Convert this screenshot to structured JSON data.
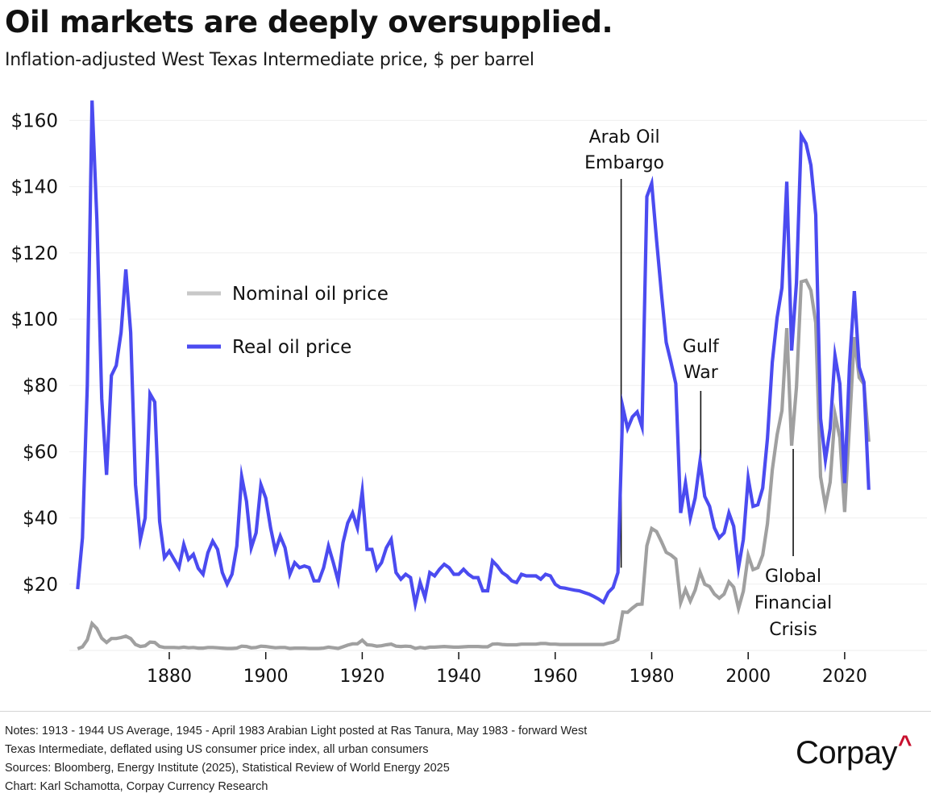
{
  "header": {
    "title": "Oil markets are deeply oversupplied.",
    "subtitle": "Inflation-adjusted West Texas Intermediate price, $ per barrel"
  },
  "footer": {
    "notes": [
      "Notes: 1913 - 1944 US Average, 1945 - April 1983 Arabian Light posted at Ras Tanura, May 1983 - forward West",
      "Texas Intermediate, deflated using US consumer price index, all urban consumers",
      "Sources: Bloomberg, Energy Institute (2025), Statistical Review of World Energy 2025",
      "Chart: Karl Schamotta, Corpay Currency Research"
    ],
    "logo_text": "Corpay",
    "logo_mark": "^",
    "logo_accent_color": "#c8102e"
  },
  "chart_data": {
    "type": "line",
    "title": "Oil markets are deeply oversupplied.",
    "subtitle": "Inflation-adjusted West Texas Intermediate price, $ per barrel",
    "xlabel": "",
    "ylabel": "",
    "xlim": [
      1861,
      2025
    ],
    "ylim": [
      0,
      165
    ],
    "grid": true,
    "x_ticks": [
      1880,
      1900,
      1920,
      1940,
      1960,
      1980,
      2000,
      2020
    ],
    "y_ticks": [
      20,
      40,
      60,
      80,
      100,
      120,
      140,
      160
    ],
    "y_tick_labels": [
      "$20",
      "$40",
      "$60",
      "$80",
      "$100",
      "$120",
      "$140",
      "$160"
    ],
    "legend": {
      "placement": "upper-left-inside",
      "entries": [
        "Nominal oil price",
        "Real oil price"
      ]
    },
    "x": [
      1861,
      1862,
      1863,
      1864,
      1865,
      1866,
      1867,
      1868,
      1869,
      1870,
      1871,
      1872,
      1873,
      1874,
      1875,
      1876,
      1877,
      1878,
      1879,
      1880,
      1881,
      1882,
      1883,
      1884,
      1885,
      1886,
      1887,
      1888,
      1889,
      1890,
      1891,
      1892,
      1893,
      1894,
      1895,
      1896,
      1897,
      1898,
      1899,
      1900,
      1901,
      1902,
      1903,
      1904,
      1905,
      1906,
      1907,
      1908,
      1909,
      1910,
      1911,
      1912,
      1913,
      1914,
      1915,
      1916,
      1917,
      1918,
      1919,
      1920,
      1921,
      1922,
      1923,
      1924,
      1925,
      1926,
      1927,
      1928,
      1929,
      1930,
      1931,
      1932,
      1933,
      1934,
      1935,
      1936,
      1937,
      1938,
      1939,
      1940,
      1941,
      1942,
      1943,
      1944,
      1945,
      1946,
      1947,
      1948,
      1949,
      1950,
      1951,
      1952,
      1953,
      1954,
      1955,
      1956,
      1957,
      1958,
      1959,
      1960,
      1961,
      1962,
      1963,
      1964,
      1965,
      1966,
      1967,
      1968,
      1969,
      1970,
      1971,
      1972,
      1973,
      1974,
      1975,
      1976,
      1977,
      1978,
      1979,
      1980,
      1981,
      1982,
      1983,
      1984,
      1985,
      1986,
      1987,
      1988,
      1989,
      1990,
      1991,
      1992,
      1993,
      1994,
      1995,
      1996,
      1997,
      1998,
      1999,
      2000,
      2001,
      2002,
      2003,
      2004,
      2005,
      2006,
      2007,
      2008,
      2009,
      2010,
      2011,
      2012,
      2013,
      2014,
      2015,
      2016,
      2017,
      2018,
      2019,
      2020,
      2021,
      2022,
      2023,
      2024,
      2025
    ],
    "series": [
      {
        "name": "Nominal oil price",
        "color": "#a0a0a0",
        "legend_color": "#c8c8c8",
        "values": [
          0.5,
          1.1,
          3.2,
          8.1,
          6.6,
          3.7,
          2.4,
          3.6,
          3.6,
          3.9,
          4.3,
          3.6,
          1.8,
          1.2,
          1.4,
          2.5,
          2.4,
          1.2,
          0.9,
          0.9,
          0.9,
          0.8,
          1.0,
          0.8,
          0.9,
          0.7,
          0.7,
          0.9,
          0.9,
          0.8,
          0.7,
          0.6,
          0.6,
          0.7,
          1.3,
          1.2,
          0.8,
          0.9,
          1.3,
          1.2,
          1.0,
          0.8,
          0.9,
          0.9,
          0.6,
          0.7,
          0.7,
          0.7,
          0.6,
          0.6,
          0.6,
          0.7,
          1.0,
          0.8,
          0.6,
          1.1,
          1.6,
          2.0,
          2.0,
          3.1,
          1.7,
          1.6,
          1.3,
          1.4,
          1.7,
          1.9,
          1.3,
          1.2,
          1.3,
          1.2,
          0.6,
          0.9,
          0.7,
          1.0,
          1.0,
          1.1,
          1.2,
          1.1,
          1.0,
          1.0,
          1.1,
          1.2,
          1.2,
          1.2,
          1.1,
          1.1,
          1.9,
          2.0,
          1.8,
          1.7,
          1.7,
          1.7,
          1.9,
          1.9,
          1.9,
          1.9,
          2.1,
          2.1,
          1.9,
          1.9,
          1.8,
          1.8,
          1.8,
          1.8,
          1.8,
          1.8,
          1.8,
          1.8,
          1.8,
          1.8,
          2.2,
          2.5,
          3.3,
          11.6,
          11.5,
          12.8,
          13.9,
          14.0,
          31.6,
          36.8,
          35.9,
          32.9,
          29.6,
          28.8,
          27.6,
          14.4,
          18.4,
          14.9,
          18.2,
          23.7,
          20.0,
          19.3,
          17.0,
          15.8,
          17.0,
          20.7,
          19.1,
          12.7,
          17.9,
          28.7,
          24.4,
          25.0,
          28.8,
          38.3,
          54.5,
          65.1,
          72.4,
          97.3,
          61.8,
          79.5,
          111.3,
          111.7,
          108.7,
          98.9,
          52.4,
          43.7,
          50.8,
          71.3,
          64.2,
          41.8,
          68.2,
          94.6,
          82.4,
          80.4,
          63.0
        ]
      },
      {
        "name": "Real oil price",
        "color": "#4b4bf0",
        "legend_color": "#4b4bf0",
        "values": [
          18.5,
          34.0,
          80.0,
          166.0,
          130.0,
          76.0,
          53.0,
          83.0,
          86.0,
          96.0,
          115.0,
          96.0,
          50.0,
          33.5,
          40.0,
          77.5,
          75.0,
          39.0,
          28.0,
          30.0,
          27.5,
          25.0,
          32.0,
          27.5,
          29.0,
          24.8,
          23.0,
          29.5,
          33.0,
          30.5,
          23.5,
          20.0,
          23.0,
          31.5,
          52.5,
          45.0,
          31.0,
          35.5,
          50.0,
          46.0,
          37.0,
          30.0,
          34.5,
          31.0,
          23.0,
          26.5,
          25.0,
          25.5,
          25.0,
          21.0,
          21.0,
          25.0,
          31.5,
          26.5,
          21.0,
          32.5,
          38.5,
          41.5,
          37.0,
          48.0,
          30.5,
          30.5,
          24.5,
          26.5,
          31.0,
          33.5,
          23.5,
          21.5,
          23.0,
          22.0,
          14.0,
          20.5,
          16.0,
          23.5,
          22.5,
          24.5,
          26.0,
          25.0,
          23.0,
          23.0,
          24.5,
          23.0,
          22.0,
          22.0,
          18.0,
          18.0,
          27.0,
          25.5,
          23.5,
          22.5,
          21.0,
          20.5,
          23.0,
          22.5,
          22.5,
          22.5,
          21.5,
          23.0,
          22.5,
          20.0,
          19.0,
          18.8,
          18.5,
          18.2,
          18.0,
          17.5,
          17.0,
          16.3,
          15.5,
          14.5,
          17.5,
          19.0,
          23.5,
          73.5,
          67.0,
          70.5,
          72.0,
          67.5,
          137.0,
          141.0,
          124.0,
          108.0,
          93.0,
          87.0,
          80.5,
          41.5,
          50.5,
          40.0,
          46.0,
          57.0,
          46.5,
          43.5,
          37.0,
          34.0,
          35.5,
          41.5,
          37.5,
          25.0,
          33.5,
          52.0,
          43.5,
          44.0,
          49.0,
          64.0,
          87.0,
          100.5,
          109.5,
          141.5,
          90.5,
          111.0,
          155.5,
          153.0,
          146.5,
          131.5,
          70.0,
          57.5,
          67.0,
          89.0,
          80.5,
          50.5,
          86.0,
          108.5,
          85.5,
          81.0,
          48.5
        ]
      }
    ],
    "annotations": [
      {
        "lines": [
          "Arab Oil",
          "Embargo"
        ],
        "year": 1973,
        "value": 23.5
      },
      {
        "lines": [
          "Gulf",
          "War"
        ],
        "year": 1990,
        "value": 57.0
      },
      {
        "lines": [
          "Global",
          "Financial",
          "Crisis"
        ],
        "year": 2009,
        "value": 61.8
      }
    ]
  }
}
